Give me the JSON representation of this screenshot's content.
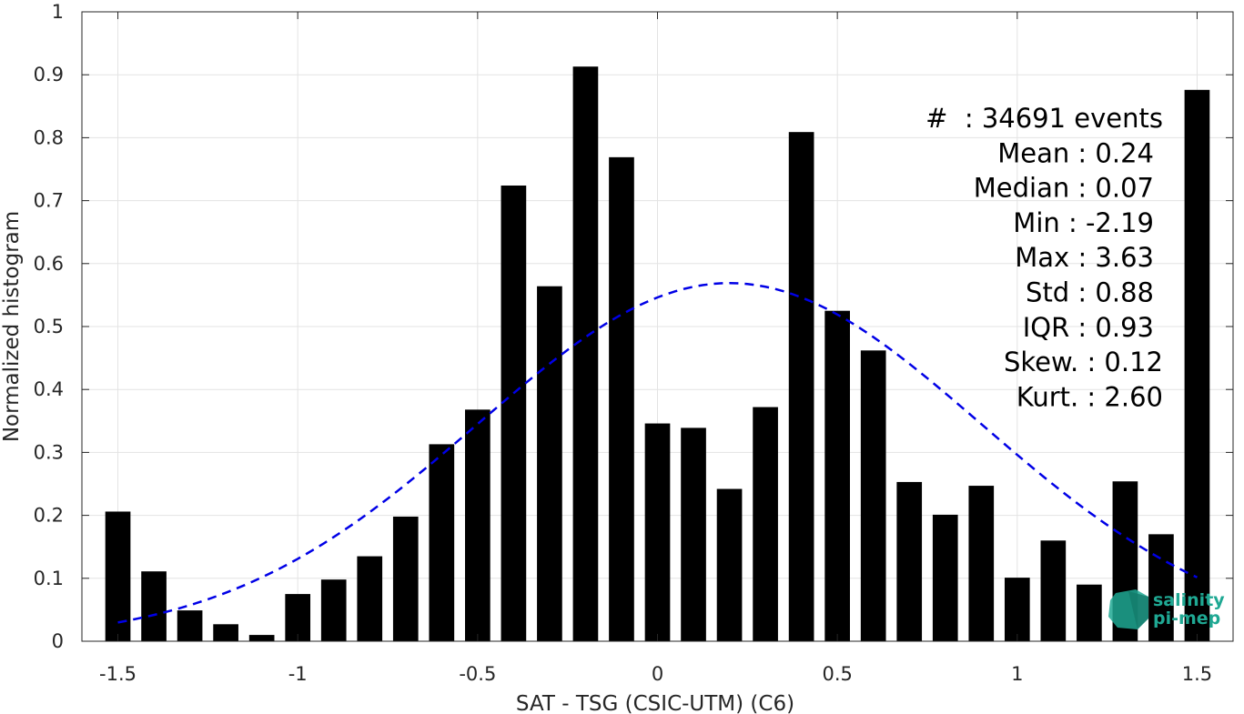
{
  "chart_data": {
    "type": "bar",
    "xlabel": "SAT - TSG (CSIC-UTM) (C6)",
    "ylabel": "Normalized histogram",
    "xlim": [
      -1.6,
      1.6
    ],
    "ylim": [
      0,
      1
    ],
    "xticks": [
      "-1.5",
      "-1",
      "-0.5",
      "0",
      "0.5",
      "1",
      "1.5"
    ],
    "xtick_values": [
      -1.5,
      -1,
      -0.5,
      0,
      0.5,
      1,
      1.5
    ],
    "yticks": [
      "0",
      "0.1",
      "0.2",
      "0.3",
      "0.4",
      "0.5",
      "0.6",
      "0.7",
      "0.8",
      "0.9",
      "1"
    ],
    "ytick_values": [
      0,
      0.1,
      0.2,
      0.3,
      0.4,
      0.5,
      0.6,
      0.7,
      0.8,
      0.9,
      1
    ],
    "grid": true,
    "bin_centers": [
      -1.5,
      -1.4,
      -1.3,
      -1.2,
      -1.1,
      -1.0,
      -0.9,
      -0.8,
      -0.7,
      -0.6,
      -0.5,
      -0.4,
      -0.3,
      -0.2,
      -0.1,
      0.0,
      0.1,
      0.2,
      0.3,
      0.4,
      0.5,
      0.6,
      0.7,
      0.8,
      0.9,
      1.0,
      1.1,
      1.2,
      1.3,
      1.4,
      1.5
    ],
    "bin_width": 0.07,
    "values": [
      0.206,
      0.111,
      0.049,
      0.027,
      0.01,
      0.075,
      0.098,
      0.135,
      0.198,
      0.313,
      0.368,
      0.724,
      0.564,
      0.913,
      0.769,
      0.346,
      0.339,
      0.242,
      0.372,
      0.809,
      0.525,
      0.462,
      0.253,
      0.201,
      0.247,
      0.101,
      0.16,
      0.09,
      0.254,
      0.17,
      0.876
    ],
    "fit_curve": {
      "type": "gaussian",
      "style": "dashed",
      "color": "#0000e6",
      "mean": 0.2,
      "std": 0.7,
      "peak": 0.569,
      "x_range": [
        -1.5,
        1.5
      ]
    },
    "bar_color": "#000000",
    "stats": [
      "#  : 34691 events",
      "Mean : 0.24",
      "Median : 0.07",
      "Min : -2.19",
      "Max : 3.63",
      "Std : 0.88",
      "IQR : 0.93",
      "Skew. : 0.12",
      "Kurt. : 2.60"
    ]
  },
  "logo": {
    "line1": "salinity",
    "line2": "pi-mep",
    "color": "#1fa893"
  }
}
